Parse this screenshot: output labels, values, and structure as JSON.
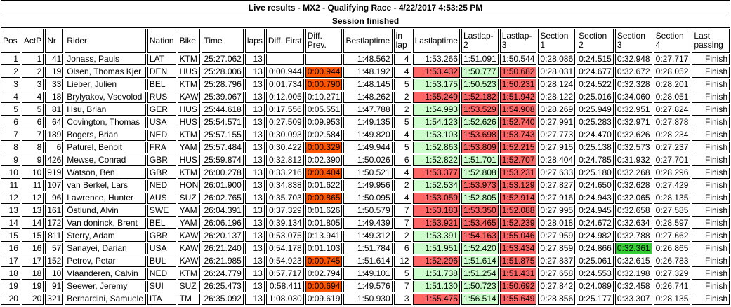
{
  "header": {
    "title": "Live results - MX2 - Qualifying Race - 4/22/2017 4:53:25 PM",
    "status": "Session finished"
  },
  "colors": {
    "green": "#CCFFCC",
    "red": "#FF6666",
    "orange": "#FF5500",
    "brightgreen": "#33CC33"
  },
  "table": {
    "columns": [
      {
        "key": "pos",
        "label": "Pos",
        "width": 30,
        "align": "right",
        "nowrap": true
      },
      {
        "key": "actp",
        "label": "ActP",
        "width": 28,
        "align": "right",
        "nowrap": true
      },
      {
        "key": "nr",
        "label": "Nr",
        "width": 25,
        "align": "right",
        "nowrap": true
      },
      {
        "key": "rider",
        "label": "Rider",
        "width": 117,
        "align": "left",
        "nowrap": true
      },
      {
        "key": "nation",
        "label": "Nation",
        "width": 36,
        "align": "left",
        "nowrap": true
      },
      {
        "key": "bike",
        "label": "Bike",
        "width": 32,
        "align": "left",
        "nowrap": true
      },
      {
        "key": "time",
        "label": "Time",
        "width": 59,
        "align": "right",
        "nowrap": true
      },
      {
        "key": "laps",
        "label": "laps",
        "width": 25,
        "align": "right",
        "nowrap": true
      },
      {
        "key": "diff_first",
        "label": "Diff. First",
        "width": 54,
        "align": "right",
        "nowrap": true
      },
      {
        "key": "diff_prev",
        "label": "Diff. Prev.",
        "width": 46,
        "align": "left",
        "nowrap": false
      },
      {
        "key": "best",
        "label": "Bestlaptime",
        "width": 70,
        "align": "right",
        "nowrap": true
      },
      {
        "key": "inlap",
        "label": "in lap",
        "width": 30,
        "align": "right",
        "nowrap": false
      },
      {
        "key": "lastlap",
        "label": "Lastlaptime",
        "width": 66,
        "align": "right",
        "nowrap": true
      },
      {
        "key": "l2",
        "label": "Lastlap-2",
        "width": 50,
        "align": "left",
        "nowrap": false
      },
      {
        "key": "l3",
        "label": "Lastlap-3",
        "width": 51,
        "align": "left",
        "nowrap": false
      },
      {
        "key": "s1",
        "label": "Section 1",
        "width": 50,
        "align": "left",
        "nowrap": false
      },
      {
        "key": "s2",
        "label": "Section 2",
        "width": 51,
        "align": "left",
        "nowrap": false
      },
      {
        "key": "s3",
        "label": "Section 3",
        "width": 53,
        "align": "left",
        "nowrap": false
      },
      {
        "key": "s4",
        "label": "Section 4",
        "width": 50,
        "align": "left",
        "nowrap": false
      },
      {
        "key": "passing",
        "label": "Last passing",
        "width": 64,
        "align": "right",
        "nowrap": false
      }
    ],
    "rows": [
      {
        "cells": [
          "1",
          "1",
          "41",
          "Jonass, Pauls",
          "LAT",
          "KTM",
          "25:27.062",
          "13",
          "",
          "",
          "1:48.562",
          "4",
          "1:53.266",
          "1:51.091",
          "1:50.544",
          "0:28.086",
          "0:24.515",
          "0:32.948",
          "0:27.717",
          "Finish"
        ],
        "bg": {}
      },
      {
        "cells": [
          "2",
          "2",
          "19",
          "Olsen, Thomas Kjer",
          "DEN",
          "HUS",
          "25:28.006",
          "13",
          "0:00.944",
          "0:00.944",
          "1:48.192",
          "4",
          "1:53.432",
          "1:50.777",
          "1:50.682",
          "0:28.031",
          "0:24.677",
          "0:32.672",
          "0:28.052",
          "Finish"
        ],
        "bg": {
          "diff_prev": "orange",
          "lastlap": "red",
          "l2": "green",
          "l3": "red"
        }
      },
      {
        "cells": [
          "3",
          "3",
          "33",
          "Lieber, Julien",
          "BEL",
          "KTM",
          "25:28.796",
          "13",
          "0:01.734",
          "0:00.790",
          "1:48.145",
          "5",
          "1:53.175",
          "1:50.523",
          "1:50.231",
          "0:28.124",
          "0:24.522",
          "0:32.328",
          "0:28.201",
          "Finish"
        ],
        "bg": {
          "diff_prev": "orange",
          "lastlap": "green",
          "l2": "green",
          "l3": "red"
        }
      },
      {
        "cells": [
          "4",
          "4",
          "18",
          "Brylyakov, Vsevolod",
          "RUS",
          "KAW",
          "25:39.067",
          "13",
          "0:12.005",
          "0:10.271",
          "1:48.262",
          "2",
          "1:55.249",
          "1:52.182",
          "1:51.942",
          "0:28.122",
          "0:25.016",
          "0:34.060",
          "0:28.051",
          "Finish"
        ],
        "bg": {
          "lastlap": "red",
          "l2": "red",
          "l3": "red"
        }
      },
      {
        "cells": [
          "5",
          "5",
          "81",
          "Hsu, Brian",
          "GER",
          "HUS",
          "25:44.618",
          "13",
          "0:17.556",
          "0:05.551",
          "1:47.788",
          "2",
          "1:54.993",
          "1:53.529",
          "1:54.908",
          "0:28.269",
          "0:25.949",
          "0:32.951",
          "0:27.824",
          "Finish"
        ],
        "bg": {
          "lastlap": "green",
          "l2": "red",
          "l3": "red"
        }
      },
      {
        "cells": [
          "6",
          "6",
          "64",
          "Covington, Thomas",
          "USA",
          "HUS",
          "25:54.571",
          "13",
          "0:27.509",
          "0:09.953",
          "1:49.135",
          "5",
          "1:54.123",
          "1:52.626",
          "1:52.740",
          "0:27.991",
          "0:25.283",
          "0:32.971",
          "0:27.878",
          "Finish"
        ],
        "bg": {
          "lastlap": "green",
          "l2": "green",
          "l3": "red"
        }
      },
      {
        "cells": [
          "7",
          "7",
          "189",
          "Bogers, Brian",
          "NED",
          "KTM",
          "25:57.155",
          "13",
          "0:30.093",
          "0:02.584",
          "1:49.820",
          "4",
          "1:53.103",
          "1:53.698",
          "1:53.743",
          "0:27.773",
          "0:24.470",
          "0:32.626",
          "0:28.234",
          "Finish"
        ],
        "bg": {
          "lastlap": "green",
          "l2": "red",
          "l3": "red"
        }
      },
      {
        "cells": [
          "8",
          "8",
          "6",
          "Paturel, Benoit",
          "FRA",
          "YAM",
          "25:57.484",
          "13",
          "0:30.422",
          "0:00.329",
          "1:49.944",
          "5",
          "1:52.863",
          "1:53.809",
          "1:52.215",
          "0:27.915",
          "0:25.138",
          "0:32.573",
          "0:27.237",
          "Finish"
        ],
        "bg": {
          "diff_prev": "orange",
          "lastlap": "green",
          "l2": "red",
          "l3": "red"
        }
      },
      {
        "cells": [
          "9",
          "9",
          "426",
          "Mewse, Conrad",
          "GBR",
          "HUS",
          "25:59.874",
          "13",
          "0:32.812",
          "0:02.390",
          "1:50.026",
          "6",
          "1:52.822",
          "1:51.701",
          "1:52.707",
          "0:28.404",
          "0:24.785",
          "0:31.932",
          "0:27.701",
          "Finish"
        ],
        "bg": {
          "lastlap": "green",
          "l2": "green",
          "l3": "red"
        }
      },
      {
        "cells": [
          "10",
          "10",
          "919",
          "Watson, Ben",
          "GBR",
          "KTM",
          "26:00.278",
          "13",
          "0:33.216",
          "0:00.404",
          "1:50.521",
          "4",
          "1:53.377",
          "1:52.808",
          "1:53.231",
          "0:27.633",
          "0:25.180",
          "0:32.268",
          "0:28.296",
          "Finish"
        ],
        "bg": {
          "diff_prev": "orange",
          "lastlap": "red",
          "l2": "green",
          "l3": "red"
        }
      },
      {
        "cells": [
          "11",
          "11",
          "107",
          "van Berkel, Lars",
          "NED",
          "HON",
          "26:01.900",
          "13",
          "0:34.838",
          "0:01.622",
          "1:49.956",
          "2",
          "1:52.534",
          "1:53.973",
          "1:53.129",
          "0:27.827",
          "0:24.650",
          "0:32.628",
          "0:27.429",
          "Finish"
        ],
        "bg": {
          "lastlap": "green",
          "l2": "red",
          "l3": "red"
        }
      },
      {
        "cells": [
          "12",
          "12",
          "96",
          "Lawrence, Hunter",
          "AUS",
          "SUZ",
          "26:02.765",
          "13",
          "0:35.703",
          "0:00.865",
          "1:50.095",
          "4",
          "1:53.059",
          "1:52.805",
          "1:52.914",
          "0:27.916",
          "0:24.943",
          "0:32.065",
          "0:28.135",
          "Finish"
        ],
        "bg": {
          "diff_prev": "orange",
          "lastlap": "red",
          "l2": "green",
          "l3": "red"
        }
      },
      {
        "cells": [
          "13",
          "13",
          "161",
          "Östlund, Alvin",
          "SWE",
          "YAM",
          "26:04.391",
          "13",
          "0:37.329",
          "0:01.626",
          "1:50.579",
          "7",
          "1:53.183",
          "1:53.350",
          "1:52.088",
          "0:27.995",
          "0:24.945",
          "0:32.658",
          "0:27.585",
          "Finish"
        ],
        "bg": {
          "lastlap": "red",
          "l2": "red",
          "l3": "red"
        }
      },
      {
        "cells": [
          "14",
          "14",
          "172",
          "Van doninck, Brent",
          "BEL",
          "YAM",
          "26:06.196",
          "13",
          "0:39.134",
          "0:01.805",
          "1:49.439",
          "7",
          "1:53.921",
          "1:53.465",
          "1:52.239",
          "0:28.018",
          "0:24.672",
          "0:32.634",
          "0:28.597",
          "Finish"
        ],
        "bg": {
          "lastlap": "red",
          "l2": "red",
          "l3": "red"
        }
      },
      {
        "cells": [
          "15",
          "15",
          "811",
          "Sterry, Adam",
          "GBR",
          "KAW",
          "26:20.137",
          "13",
          "0:53.075",
          "0:13.941",
          "1:49.312",
          "2",
          "1:53.391",
          "1:54.163",
          "1:55.046",
          "0:27.959",
          "0:24.982",
          "0:32.788",
          "0:27.662",
          "Finish"
        ],
        "bg": {
          "lastlap": "green",
          "l2": "red",
          "l3": "red"
        }
      },
      {
        "cells": [
          "16",
          "16",
          "57",
          "Sanayei, Darian",
          "USA",
          "KAW",
          "26:21.240",
          "13",
          "0:54.178",
          "0:01.103",
          "1:51.784",
          "6",
          "1:51.951",
          "1:52.420",
          "1:53.434",
          "0:27.859",
          "0:24.866",
          "0:32.361",
          "0:26.865",
          "Finish"
        ],
        "bg": {
          "lastlap": "green",
          "l2": "green",
          "l3": "red",
          "s3": "brightgreen"
        }
      },
      {
        "cells": [
          "17",
          "17",
          "152",
          "Petrov, Petar",
          "BUL",
          "KAW",
          "26:21.985",
          "13",
          "0:54.923",
          "0:00.745",
          "1:51.614",
          "12",
          "1:52.296",
          "1:51.614",
          "1:51.875",
          "0:27.837",
          "0:25.061",
          "0:32.615",
          "0:26.783",
          "Finish"
        ],
        "bg": {
          "diff_prev": "orange",
          "lastlap": "red",
          "l2": "green",
          "l3": "red"
        }
      },
      {
        "cells": [
          "18",
          "18",
          "10",
          "Vlaanderen, Calvin",
          "NED",
          "KTM",
          "26:24.779",
          "13",
          "0:57.717",
          "0:02.794",
          "1:49.101",
          "5",
          "1:51.738",
          "1:51.254",
          "1:51.431",
          "0:27.658",
          "0:24.553",
          "0:32.198",
          "0:27.329",
          "Finish"
        ],
        "bg": {
          "lastlap": "green",
          "l2": "green",
          "l3": "red"
        }
      },
      {
        "cells": [
          "19",
          "19",
          "91",
          "Seewer, Jeremy",
          "SUI",
          "SUZ",
          "26:25.473",
          "13",
          "0:58.411",
          "0:00.694",
          "1:49.576",
          "7",
          "1:51.130",
          "1:50.723",
          "1:50.692",
          "0:27.842",
          "0:24.089",
          "0:32.458",
          "0:26.741",
          "Finish"
        ],
        "bg": {
          "diff_prev": "orange",
          "lastlap": "green",
          "l2": "green",
          "l3": "red"
        }
      },
      {
        "cells": [
          "20",
          "20",
          "321",
          "Bernardini, Samuele",
          "ITA",
          "TM",
          "26:35.092",
          "13",
          "1:08.030",
          "0:09.619",
          "1:50.930",
          "3",
          "1:55.475",
          "1:56.514",
          "1:55.649",
          "0:28.856",
          "0:25.177",
          "0:33.307",
          "0:28.135",
          "Finish"
        ],
        "bg": {
          "lastlap": "red",
          "l2": "green",
          "l3": "red"
        }
      }
    ]
  }
}
